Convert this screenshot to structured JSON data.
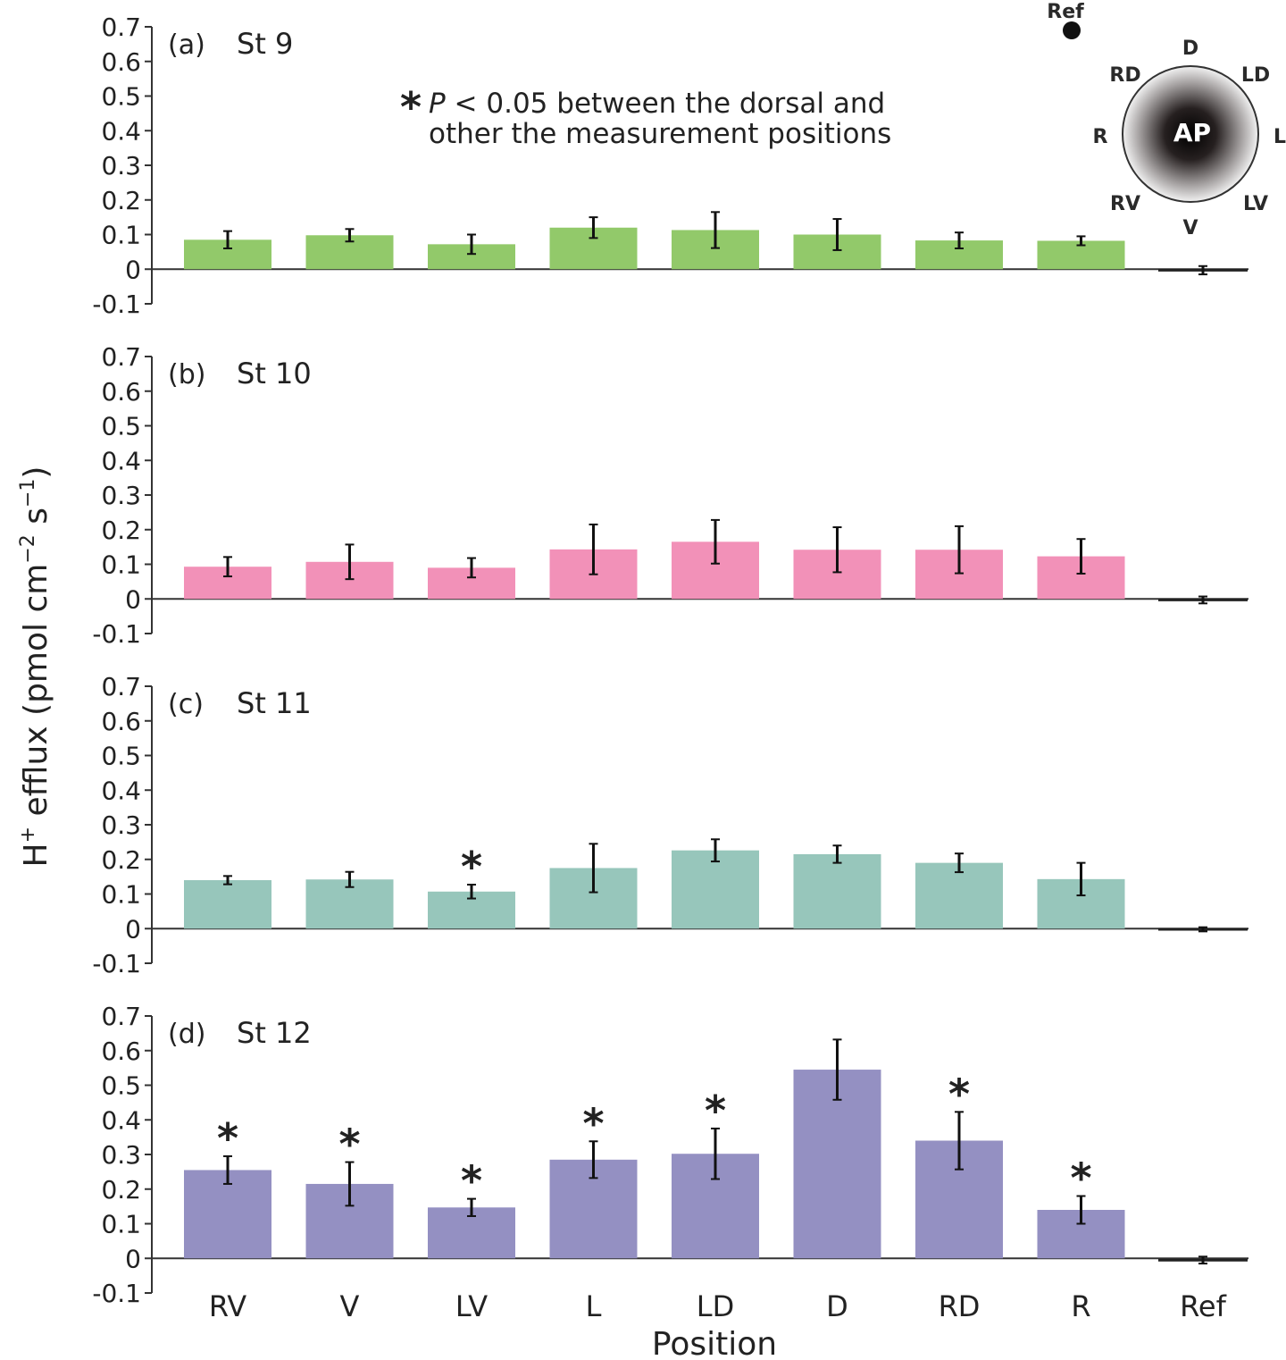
{
  "chart_data": {
    "type": "bar",
    "categories": [
      "RV",
      "V",
      "LV",
      "L",
      "LD",
      "D",
      "RD",
      "R",
      "Ref"
    ],
    "xlabel": "Position",
    "ylabel_main": "H",
    "ylabel_sup": "+",
    "ylabel_rest": " efflux (pmol cm",
    "ylabel_exp1": "−2",
    "ylabel_mid": " s",
    "ylabel_exp2": "−1",
    "ylabel_end": ")",
    "ylim": [
      -0.1,
      0.7
    ],
    "yticks": [
      "-0.1",
      "0",
      "0.1",
      "0.2",
      "0.3",
      "0.4",
      "0.5",
      "0.6",
      "0.7"
    ],
    "significance_symbol": "*",
    "annotation": {
      "symbol": "*",
      "italic": "P",
      "line1_rest": " < 0.05 between the dorsal and",
      "line2": "other the measurement positions"
    },
    "panels": [
      {
        "tag": "(a)",
        "stage": "St 9",
        "color": "#92c96a",
        "values": [
          0.085,
          0.098,
          0.072,
          0.12,
          0.113,
          0.1,
          0.083,
          0.082,
          -0.003
        ],
        "errors": [
          0.025,
          0.018,
          0.028,
          0.03,
          0.052,
          0.045,
          0.023,
          0.013,
          0.012
        ],
        "significant": []
      },
      {
        "tag": "(b)",
        "stage": "St 10",
        "color": "#f291b8",
        "values": [
          0.093,
          0.107,
          0.09,
          0.143,
          0.165,
          0.142,
          0.142,
          0.123,
          -0.003
        ],
        "errors": [
          0.028,
          0.05,
          0.028,
          0.072,
          0.063,
          0.065,
          0.068,
          0.05,
          0.01
        ],
        "significant": []
      },
      {
        "tag": "(c)",
        "stage": "St 11",
        "color": "#97c6bb",
        "values": [
          0.14,
          0.142,
          0.107,
          0.175,
          0.226,
          0.215,
          0.19,
          0.143,
          -0.002
        ],
        "errors": [
          0.012,
          0.022,
          0.02,
          0.07,
          0.032,
          0.025,
          0.027,
          0.047,
          0.006
        ],
        "significant": [
          "LV"
        ]
      },
      {
        "tag": "(d)",
        "stage": "St 12",
        "color": "#9490c2",
        "values": [
          0.255,
          0.215,
          0.147,
          0.285,
          0.302,
          0.545,
          0.34,
          0.14,
          -0.005
        ],
        "errors": [
          0.04,
          0.063,
          0.025,
          0.053,
          0.073,
          0.087,
          0.083,
          0.04,
          0.01
        ],
        "significant": [
          "RV",
          "V",
          "LV",
          "L",
          "LD",
          "RD",
          "R"
        ]
      }
    ]
  },
  "schematic": {
    "center_label": "AP",
    "ref_label": "Ref",
    "labels": {
      "D": "D",
      "LD": "LD",
      "L": "L",
      "LV": "LV",
      "V": "V",
      "RV": "RV",
      "R": "R",
      "RD": "RD"
    }
  }
}
